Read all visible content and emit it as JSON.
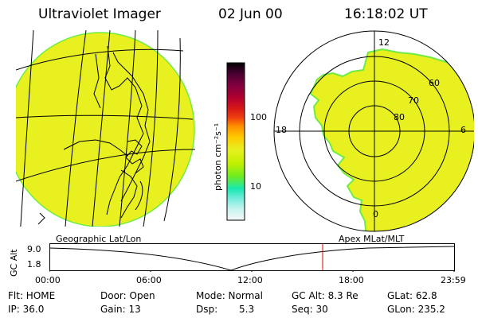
{
  "header": {
    "title": "Ultraviolet Imager",
    "date": "02 Jun 00",
    "time": "16:18:02 UT"
  },
  "colorbar": {
    "label": "photon cm⁻²s⁻¹",
    "ticks": [
      "100",
      "10"
    ],
    "colors": [
      "#000000",
      "#4a0033",
      "#800040",
      "#b00030",
      "#d81818",
      "#f04010",
      "#ff8c00",
      "#ffc800",
      "#e8f020",
      "#c0f000",
      "#70ec20",
      "#18e8b0",
      "#70ecdc",
      "#c8f4f0",
      "#f4f8f8"
    ]
  },
  "left_panel": {
    "label": "Geographic Lat/Lon"
  },
  "right_panel": {
    "label": "Apex MLat/MLT",
    "mlt_labels": [
      "12",
      "18",
      "6",
      "0"
    ],
    "lat_labels": [
      "60",
      "70",
      "80"
    ]
  },
  "altitude_plot": {
    "ylabel": "GC Alt",
    "y_ticks": [
      "9.0",
      "1.8"
    ],
    "x_ticks": [
      "00:00",
      "06:00",
      "12:00",
      "18:00",
      "23:59"
    ]
  },
  "info": {
    "row1": {
      "flt": "Flt: HOME",
      "door": "Door: Open",
      "mode": "Mode: Normal",
      "gc_alt": "GC Alt: 8.3 Re",
      "glat": "GLat:  62.8"
    },
    "row2": {
      "ip": "IP: 36.0",
      "gain": "Gain: 13",
      "dsp_label": "Dsp:",
      "dsp_value": "5.3",
      "seq": "Seq: 30",
      "glon": "GLon: 235.2"
    }
  },
  "colors": {
    "auroral_fill": "#e8f020",
    "auroral_edge": "#70ec40",
    "marker": "#e00000"
  }
}
